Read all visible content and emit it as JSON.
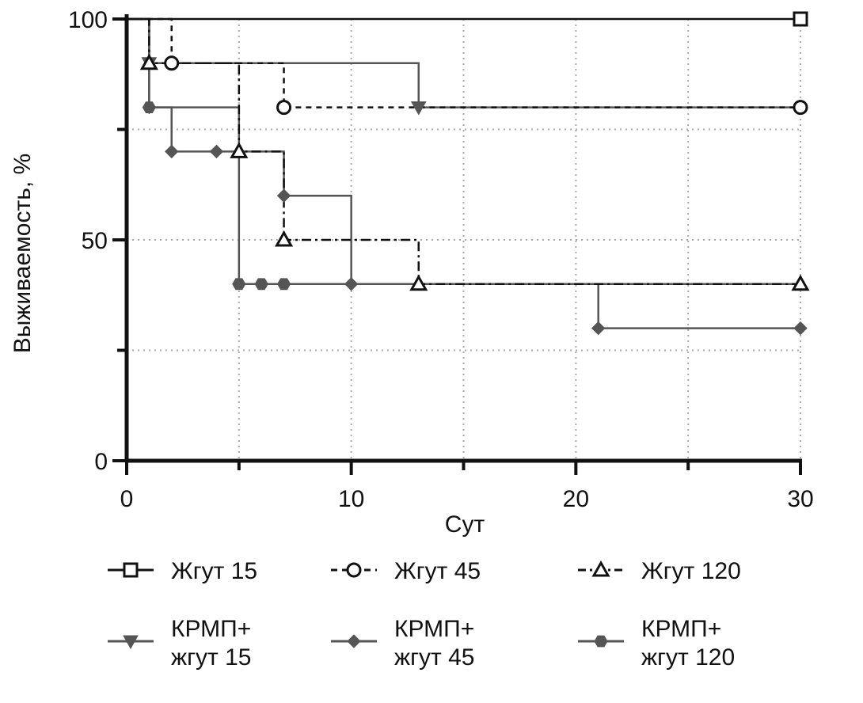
{
  "chart_data": {
    "type": "line",
    "step": true,
    "xlabel": "Сут",
    "ylabel": "Выживаемость, %",
    "xlim": [
      0,
      30
    ],
    "ylim": [
      0,
      100
    ],
    "x_ticks": [
      0,
      10,
      20,
      30
    ],
    "x_tick_labels": [
      "0",
      "10",
      "20",
      "30"
    ],
    "x_minor_ticks": [
      5,
      15,
      25
    ],
    "y_ticks": [
      0,
      50,
      100
    ],
    "y_tick_labels": [
      "0",
      "50",
      "100"
    ],
    "y_minor_ticks": [
      25,
      75
    ],
    "grid": "dotted",
    "legend_position": "bottom",
    "colors": {
      "open_series": "#111111",
      "filled_series": "#555555",
      "axis": "#111111",
      "grid": "#aaaaaa"
    },
    "series": [
      {
        "name": "Жгут 15",
        "marker": "square",
        "filled": false,
        "dash": "solid",
        "steps": [
          [
            0,
            100
          ],
          [
            30,
            100
          ]
        ],
        "points": [
          [
            30,
            100
          ]
        ]
      },
      {
        "name": "Жгут 45",
        "marker": "circle",
        "filled": false,
        "dash": "dashed",
        "steps": [
          [
            0,
            100
          ],
          [
            2,
            90
          ],
          [
            7,
            80
          ],
          [
            30,
            80
          ]
        ],
        "points": [
          [
            2,
            90
          ],
          [
            7,
            80
          ],
          [
            30,
            80
          ]
        ]
      },
      {
        "name": "Жгут 120",
        "marker": "triangle",
        "filled": false,
        "dash": "dashdot",
        "steps": [
          [
            0,
            100
          ],
          [
            1,
            90
          ],
          [
            5,
            70
          ],
          [
            7,
            50
          ],
          [
            13,
            40
          ],
          [
            30,
            40
          ]
        ],
        "points": [
          [
            1,
            90
          ],
          [
            5,
            70
          ],
          [
            7,
            50
          ],
          [
            13,
            40
          ],
          [
            30,
            40
          ]
        ]
      },
      {
        "name": "КРМП+ жгут 15",
        "label_lines": [
          "КРМП+",
          "жгут 15"
        ],
        "marker": "triangle-down",
        "filled": true,
        "dash": "solid",
        "steps": [
          [
            0,
            100
          ],
          [
            1,
            90
          ],
          [
            13,
            80
          ],
          [
            30,
            80
          ]
        ],
        "points": [
          [
            1,
            90
          ],
          [
            13,
            80
          ]
        ]
      },
      {
        "name": "КРМП+ жгут 45",
        "label_lines": [
          "КРМП+",
          "жгут 45"
        ],
        "marker": "diamond",
        "filled": true,
        "dash": "solid",
        "steps": [
          [
            0,
            100
          ],
          [
            1,
            80
          ],
          [
            2,
            70
          ],
          [
            4,
            70
          ],
          [
            5,
            70
          ],
          [
            7,
            60
          ],
          [
            10,
            40
          ],
          [
            21,
            30
          ],
          [
            30,
            30
          ]
        ],
        "points": [
          [
            1,
            80
          ],
          [
            2,
            70
          ],
          [
            4,
            70
          ],
          [
            7,
            60
          ],
          [
            10,
            40
          ],
          [
            21,
            30
          ],
          [
            30,
            30
          ]
        ]
      },
      {
        "name": "КРМП+ жгут 120",
        "label_lines": [
          "КРМП+",
          "жгут 120"
        ],
        "marker": "hexagon",
        "filled": true,
        "dash": "solid",
        "steps": [
          [
            0,
            100
          ],
          [
            1,
            80
          ],
          [
            4,
            80
          ],
          [
            5,
            40
          ],
          [
            30,
            40
          ]
        ],
        "points": [
          [
            1,
            80
          ],
          [
            5,
            40
          ],
          [
            6,
            40
          ],
          [
            7,
            40
          ]
        ]
      }
    ]
  }
}
